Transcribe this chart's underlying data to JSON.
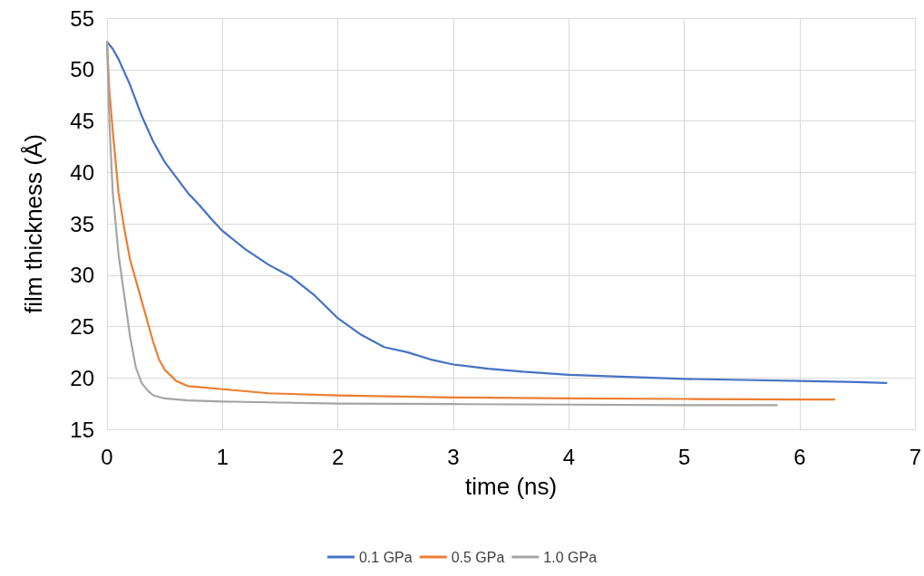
{
  "chart_data": {
    "type": "line",
    "xlabel": "time (ns)",
    "ylabel": "film thickness (Å)",
    "xlim": [
      0,
      7
    ],
    "xticks": [
      0,
      1,
      2,
      3,
      4,
      5,
      6,
      7
    ],
    "ylim": [
      15,
      55
    ],
    "yticks": [
      15,
      20,
      25,
      30,
      35,
      40,
      45,
      50,
      55
    ],
    "grid": true,
    "legend": "bottom",
    "marker": "none",
    "line_style": "solid",
    "series": [
      {
        "name": "0.1 GPa",
        "color": "#4472c4",
        "x": [
          0,
          0.05,
          0.1,
          0.2,
          0.3,
          0.4,
          0.5,
          0.6,
          0.7,
          0.8,
          0.9,
          1.0,
          1.2,
          1.4,
          1.6,
          1.8,
          2.0,
          2.2,
          2.4,
          2.6,
          2.8,
          3.0,
          3.3,
          3.6,
          4.0,
          4.5,
          5.0,
          5.5,
          6.0,
          6.5,
          6.75
        ],
        "values": [
          52.7,
          52,
          51,
          48.5,
          45.5,
          43,
          41,
          39.5,
          38,
          36.8,
          35.5,
          34.3,
          32.5,
          31,
          29.8,
          28,
          25.8,
          24.2,
          23,
          22.5,
          21.8,
          21.3,
          20.9,
          20.6,
          20.3,
          20.1,
          19.9,
          19.8,
          19.7,
          19.6,
          19.5
        ]
      },
      {
        "name": "0.5 GPa",
        "color": "#ed7d31",
        "x": [
          0,
          0.02,
          0.05,
          0.1,
          0.15,
          0.2,
          0.3,
          0.4,
          0.45,
          0.5,
          0.6,
          0.7,
          0.8,
          1.0,
          1.4,
          2.0,
          3.0,
          4.0,
          5.0,
          6.0,
          6.3
        ],
        "values": [
          52.7,
          48,
          44,
          38,
          34.5,
          31.5,
          27.5,
          23.5,
          21.8,
          20.8,
          19.7,
          19.2,
          19.1,
          18.9,
          18.5,
          18.3,
          18.1,
          18.0,
          17.95,
          17.9,
          17.9
        ]
      },
      {
        "name": "1.0 GPa",
        "color": "#a5a5a5",
        "x": [
          0,
          0.02,
          0.05,
          0.1,
          0.15,
          0.2,
          0.25,
          0.3,
          0.35,
          0.4,
          0.5,
          0.7,
          1.0,
          2.0,
          3.0,
          4.0,
          5.0,
          5.8
        ],
        "values": [
          52.7,
          45,
          38,
          32,
          28,
          24,
          21,
          19.5,
          18.8,
          18.3,
          18,
          17.8,
          17.7,
          17.5,
          17.45,
          17.4,
          17.35,
          17.35
        ]
      }
    ]
  }
}
